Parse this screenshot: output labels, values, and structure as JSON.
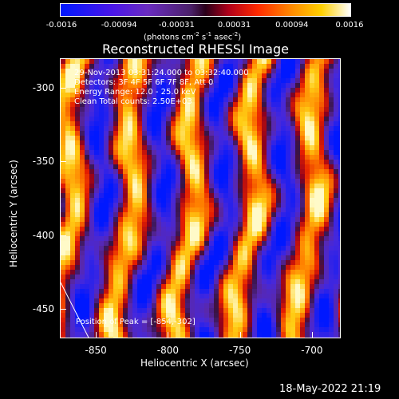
{
  "colorbar": {
    "ticks": [
      "-0.0016",
      "-0.00094",
      "-0.00031",
      "0.00031",
      "0.00094",
      "0.0016"
    ],
    "unit_main": "(photons cm",
    "unit_exp1": "-2",
    "unit_mid": " s",
    "unit_exp2": "-1",
    "unit_end": " asec",
    "unit_exp3": "-2",
    "unit_close": ")"
  },
  "chart_data": {
    "type": "heatmap",
    "title": "Reconstructed RHESSI Image",
    "xlabel": "Heliocentric X (arcsec)",
    "ylabel": "Heliocentric Y (arcsec)",
    "xlim": [
      -875,
      -680
    ],
    "ylim": [
      -470,
      -280
    ],
    "x_ticks": [
      "-850",
      "-800",
      "-750",
      "-700"
    ],
    "y_ticks": [
      "-300",
      "-350",
      "-400",
      "-450"
    ],
    "colorbar_range": [
      -0.0016,
      0.0016
    ],
    "annotations": [
      "29-Nov-2013 03:31:24.000 to 03:32:40.000",
      "Detectors: 3F 4F 5F 6F 7F 8F, Att 0",
      "Energy Range: 12.0 - 25.0 keV",
      "Clean    Total counts: 2.50E+03"
    ],
    "peak_label": "Position of Peak = [-854,-302]",
    "peak": [
      -854,
      -302
    ]
  },
  "footer": {
    "timestamp": "18-May-2022 21:19"
  }
}
